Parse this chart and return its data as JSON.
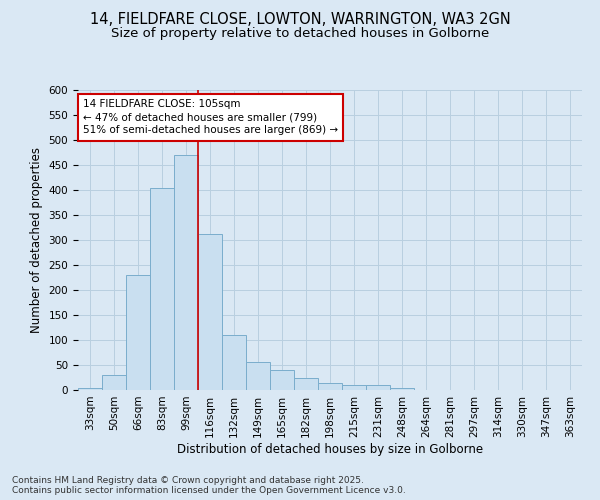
{
  "title_line1": "14, FIELDFARE CLOSE, LOWTON, WARRINGTON, WA3 2GN",
  "title_line2": "Size of property relative to detached houses in Golborne",
  "xlabel": "Distribution of detached houses by size in Golborne",
  "ylabel": "Number of detached properties",
  "categories": [
    "33sqm",
    "50sqm",
    "66sqm",
    "83sqm",
    "99sqm",
    "116sqm",
    "132sqm",
    "149sqm",
    "165sqm",
    "182sqm",
    "198sqm",
    "215sqm",
    "231sqm",
    "248sqm",
    "264sqm",
    "281sqm",
    "297sqm",
    "314sqm",
    "330sqm",
    "347sqm",
    "363sqm"
  ],
  "values": [
    5,
    30,
    230,
    405,
    470,
    312,
    110,
    57,
    40,
    25,
    14,
    11,
    10,
    4,
    1,
    0,
    0,
    0,
    0,
    1,
    0
  ],
  "bar_color": "#c9dff0",
  "bar_edge_color": "#7aadcc",
  "grid_color": "#b8cfe0",
  "background_color": "#dae8f4",
  "vline_x_index": 4.5,
  "vline_color": "#cc0000",
  "annotation_text": "14 FIELDFARE CLOSE: 105sqm\n← 47% of detached houses are smaller (799)\n51% of semi-detached houses are larger (869) →",
  "annotation_box_color": "#ffffff",
  "annotation_box_edge": "#cc0000",
  "ylim": [
    0,
    600
  ],
  "yticks": [
    0,
    50,
    100,
    150,
    200,
    250,
    300,
    350,
    400,
    450,
    500,
    550,
    600
  ],
  "footer_text": "Contains HM Land Registry data © Crown copyright and database right 2025.\nContains public sector information licensed under the Open Government Licence v3.0.",
  "title_fontsize": 10.5,
  "subtitle_fontsize": 9.5,
  "axis_label_fontsize": 8.5,
  "tick_fontsize": 7.5,
  "annotation_fontsize": 7.5,
  "footer_fontsize": 6.5
}
